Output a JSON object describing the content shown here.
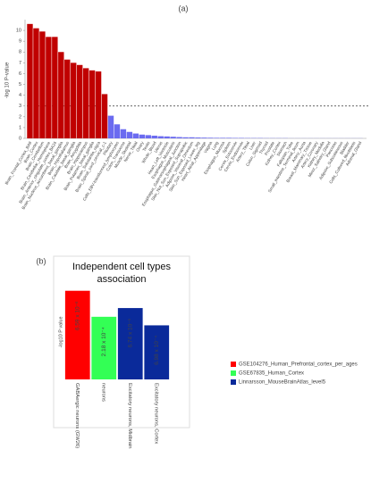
{
  "chart_data": [
    {
      "type": "bar",
      "panel_label": "(a)",
      "y_label": "-log 10 P-value",
      "categories": [
        "Brain_Frontal_Cortex_BA9",
        "Brain_Cortex",
        "Brain_Cerebellum",
        "Brain_Cerebellar_Hemisphere",
        "Brain_Anterior_cingulate_cortex_BA24",
        "Brain_Nucleus_accumbens_basal_ganglia",
        "Brain_Hypothalamus",
        "Brain_Caudate_basal_ganglia",
        "Brain_Amygdala",
        "Brain_Hippocampus",
        "Brain_Putamen_basal_ganglia",
        "Brain_Substantia_nigra",
        "Brain_Spinal_cord_cervical_c-1",
        "Pituitary",
        "Cells_EBV-transformed_lymphocytes",
        "Colon_Transverse",
        "Muscle_Skeletal",
        "Nerve_Tibial",
        "Ovary",
        "Testis",
        "Whole_Blood",
        "Uterus",
        "Heart_Left_Ventricle",
        "Esophagus_Muscularis",
        "Esophagus_Gastroesophageal_Junction",
        "Skin_Not_Sun_Exposed_Suprapubic",
        "Adipose_Visceral_Omentum",
        "Skin_Sun_Exposed_Lower_leg",
        "Heart_Atrial_Appendage",
        "Vagina",
        "Lung",
        "Esophagus_Mucosa",
        "Spleen",
        "Cervix_Ectocervix",
        "Cervix_Endocervix",
        "Artery_Tibial",
        "Liver",
        "Colon_Sigmoid",
        "Thyroid",
        "Prostate",
        "Kidney_Cortex",
        "Stomach",
        "Fallopian_Tube",
        "Small_Intestine_Terminal_Ileum",
        "Artery_Aorta",
        "Breast_Mammary_Tissue",
        "Artery_Coronary",
        "Kidney_Medulla",
        "Minor_Salivary_Gland",
        "Pancreas",
        "Adipose_Subcutaneous",
        "Bladder",
        "Cells_Cultured_fibroblasts",
        "Adrenal_Gland"
      ],
      "values": [
        10.6,
        10.2,
        9.9,
        9.4,
        9.4,
        8.0,
        7.3,
        7.0,
        6.8,
        6.5,
        6.3,
        6.2,
        4.1,
        2.1,
        1.3,
        0.85,
        0.6,
        0.45,
        0.35,
        0.3,
        0.25,
        0.2,
        0.18,
        0.15,
        0.12,
        0.1,
        0.1,
        0.08,
        0.07,
        0.06,
        0.05,
        0.05,
        0.05,
        0.04,
        0.04,
        0.03,
        0.03,
        0.03,
        0.02,
        0.02,
        0.02,
        0.02,
        0.01,
        0.01,
        0.01,
        0.01,
        0.01,
        0.01,
        0.01,
        0.01,
        0.01,
        0.01,
        0.01,
        0.01
      ],
      "color": "#c00000",
      "color_below_threshold": "#6b6bf0",
      "threshold": 3,
      "ylim": [
        0,
        11
      ],
      "yticks": [
        0,
        1,
        2,
        3,
        4,
        5,
        6,
        7,
        8,
        9,
        10
      ]
    },
    {
      "type": "bar",
      "panel_label": "(b)",
      "title": "Independent cell types association",
      "y_label": "-log10 P value",
      "categories": [
        "GABAergic neurons (GW26)",
        "neurons",
        "Excitatory neurons, Midbrain",
        "Excitatory neurons, Cortex"
      ],
      "series": [
        {
          "name": "GSE104276_Human_Prefrontal_cortex_per_ages",
          "color": "#ff0000",
          "values": [
            5.18,
            null,
            null,
            null
          ],
          "value_labels": [
            "6.59 x 10⁻⁶",
            null,
            null,
            null
          ]
        },
        {
          "name": "GSE67835_Human_Cortex",
          "color": "#33ff55",
          "values": [
            null,
            3.66,
            null,
            null
          ],
          "value_labels": [
            null,
            "2.18 x 10⁻⁴",
            null,
            null
          ]
        },
        {
          "name": "Linnarsson_MouseBrainAtlas_level5",
          "color": "#0a2a9a",
          "values": [
            null,
            null,
            4.17,
            3.16
          ],
          "value_labels": [
            null,
            null,
            "6.74 x 10⁻⁵",
            "6.98 x 10⁻⁴"
          ]
        }
      ],
      "ylim": [
        0,
        6
      ]
    }
  ]
}
